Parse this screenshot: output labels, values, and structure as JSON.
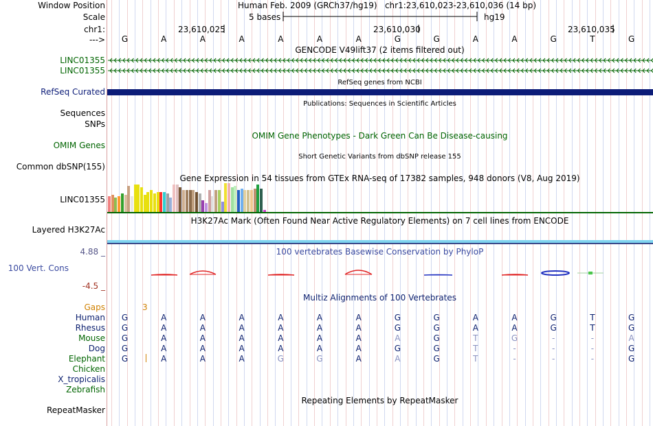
{
  "colors": {
    "darkGreen": "#006400",
    "navy": "#0a1e6e",
    "refseq": "#0c1c78",
    "gaps": "#d08000",
    "phylopPos": "#e02020",
    "phylopNeg": "#2030c0",
    "phylopRange": "#555588",
    "h3k27": "#7fd4f0",
    "grid": "#f0d0d0",
    "gridBlue": "#d0d8f0"
  },
  "header": {
    "window_position_label": "Window Position",
    "window_position_value": "Human Feb. 2009 (GRCh37/hg19)   chr1:23,610,023-23,610,036 (14 bp)",
    "scale_label": "Scale",
    "scale_value": "5 bases",
    "scale_db": "hg19",
    "chr_label": "chr1:",
    "strand_label": "--->",
    "positions": [
      "23,610,025",
      "23,610,030",
      "23,610,035"
    ]
  },
  "sequence": [
    "G",
    "A",
    "A",
    "A",
    "A",
    "A",
    "A",
    "G",
    "G",
    "A",
    "A",
    "G",
    "T",
    "G"
  ],
  "tracks": {
    "gencode": {
      "title": "GENCODE V49lift37 (2 items filtered out)",
      "items": [
        "LINC01355",
        "LINC01355"
      ]
    },
    "refseq": {
      "title": "RefSeq genes from NCBI",
      "label": "RefSeq Curated"
    },
    "publications": {
      "title": "Publications: Sequences in Scientific Articles",
      "labels": [
        "Sequences",
        "SNPs"
      ]
    },
    "omim": {
      "title": "OMIM Gene Phenotypes - Dark Green Can Be Disease-causing",
      "label": "OMIM Genes"
    },
    "dbsnp": {
      "title": "Short Genetic Variants from dbSNP release 155",
      "label": "Common dbSNP(155)"
    },
    "gtex": {
      "title": "Gene Expression in 54 tissues from GTEx RNA-seq of 17382 samples, 948 donors (V8, Aug 2019)",
      "label": "LINC01355",
      "bars": [
        {
          "c": "#f08080",
          "v": 0.55
        },
        {
          "c": "#e09060",
          "v": 0.6
        },
        {
          "c": "#8fbc4f",
          "v": 0.5
        },
        {
          "c": "#ff9a30",
          "v": 0.55
        },
        {
          "c": "#33a02c",
          "v": 0.65
        },
        {
          "c": "#d9c0a0",
          "v": 0.6
        },
        {
          "c": "#c8a080",
          "v": 0.9
        },
        {
          "c": "#e8e8e8",
          "v": 0.55
        },
        {
          "c": "#e8e010",
          "v": 0.95
        },
        {
          "c": "#e8e010",
          "v": 0.95
        },
        {
          "c": "#e8e010",
          "v": 0.85
        },
        {
          "c": "#e8e010",
          "v": 0.6
        },
        {
          "c": "#e8e010",
          "v": 0.7
        },
        {
          "c": "#e8e010",
          "v": 0.75
        },
        {
          "c": "#e8e010",
          "v": 0.65
        },
        {
          "c": "#e8e010",
          "v": 0.7
        },
        {
          "c": "#ff3030",
          "v": 0.7
        },
        {
          "c": "#30d0d0",
          "v": 0.7
        },
        {
          "c": "#a0a0a0",
          "v": 0.65
        },
        {
          "c": "#9ab0d8",
          "v": 0.5
        },
        {
          "c": "#f0c0c0",
          "v": 0.95
        },
        {
          "c": "#e0c0c0",
          "v": 0.95
        },
        {
          "c": "#7a5a3a",
          "v": 0.85
        },
        {
          "c": "#d0b090",
          "v": 0.75
        },
        {
          "c": "#a08060",
          "v": 0.75
        },
        {
          "c": "#8a6a4a",
          "v": 0.75
        },
        {
          "c": "#c0a080",
          "v": 0.75
        },
        {
          "c": "#705030",
          "v": 0.7
        },
        {
          "c": "#b0b0b0",
          "v": 0.65
        },
        {
          "c": "#9a40b0",
          "v": 0.4
        },
        {
          "c": "#c090e0",
          "v": 0.3
        },
        {
          "c": "#d0a0a0",
          "v": 0.75
        },
        {
          "c": "#e0e0e0",
          "v": 0.55
        },
        {
          "c": "#c0a080",
          "v": 0.75
        },
        {
          "c": "#a8d060",
          "v": 0.75
        },
        {
          "c": "#9090e0",
          "v": 0.35
        },
        {
          "c": "#f0e030",
          "v": 1.0
        },
        {
          "c": "#f0b0b0",
          "v": 1.0
        },
        {
          "c": "#a0e0a0",
          "v": 0.85
        },
        {
          "c": "#c0f0c0",
          "v": 0.9
        },
        {
          "c": "#2060c0",
          "v": 0.75
        },
        {
          "c": "#70b0f0",
          "v": 0.8
        },
        {
          "c": "#e0d0a0",
          "v": 0.75
        },
        {
          "c": "#d0c090",
          "v": 0.75
        },
        {
          "c": "#f0c890",
          "v": 0.75
        },
        {
          "c": "#c09070",
          "v": 0.8
        },
        {
          "c": "#20a040",
          "v": 0.95
        },
        {
          "c": "#306050",
          "v": 0.8
        },
        {
          "c": "#d040d0",
          "v": 0.08
        }
      ]
    },
    "h3k27ac": {
      "title": "H3K27Ac Mark (Often Found Near Active Regulatory Elements) on 7 cell lines from ENCODE",
      "label": "Layered H3K27Ac"
    },
    "phylop": {
      "title": "100 vertebrates Basewise Conservation by PhyloP",
      "label": "100 Vert. Cons",
      "max": "4.88 _",
      "min": "-4.5 _"
    },
    "multiz": {
      "title": "Multiz Alignments of 100 Vertebrates",
      "gaps_label": "Gaps",
      "gaps_value": "3",
      "species": [
        {
          "name": "Human",
          "color": "#0a1e6e",
          "seq": [
            "G",
            "A",
            "A",
            "A",
            "A",
            "A",
            "A",
            "G",
            "G",
            "A",
            "A",
            "G",
            "T",
            "G"
          ]
        },
        {
          "name": "Rhesus",
          "color": "#0a1e6e",
          "seq": [
            "G",
            "A",
            "A",
            "A",
            "A",
            "A",
            "A",
            "G",
            "G",
            "A",
            "A",
            "G",
            "T",
            "G"
          ]
        },
        {
          "name": "Mouse",
          "color": "#006400",
          "seq": [
            "G",
            "A",
            "A",
            "A",
            "A",
            "A",
            "A",
            "A",
            "G",
            "T",
            "G",
            "-",
            "-",
            "A"
          ]
        },
        {
          "name": "Dog",
          "color": "#0a1e6e",
          "seq": [
            "G",
            "A",
            "A",
            "A",
            "A",
            "A",
            "A",
            "G",
            "G",
            "T",
            "-",
            "-",
            "-",
            "G"
          ]
        },
        {
          "name": "Elephant",
          "color": "#006400",
          "seq": [
            "G",
            "A",
            "A",
            "A",
            "G",
            "G",
            "A",
            "A",
            "G",
            "T",
            "-",
            "-",
            "-",
            "G"
          ]
        },
        {
          "name": "Chicken",
          "color": "#006400",
          "seq": []
        },
        {
          "name": "X_tropicalis",
          "color": "#0a1e6e",
          "seq": []
        },
        {
          "name": "Zebrafish",
          "color": "#006400",
          "seq": []
        }
      ]
    },
    "repeatmasker": {
      "title": "Repeating Elements by RepeatMasker",
      "label": "RepeatMasker"
    }
  }
}
